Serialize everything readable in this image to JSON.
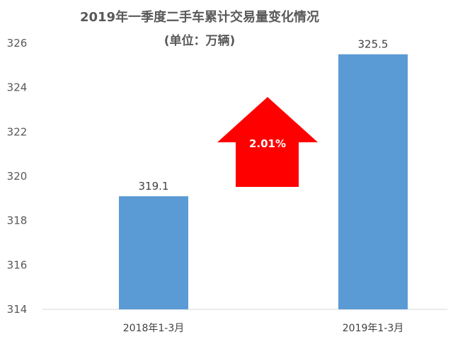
{
  "chart_data": {
    "type": "bar",
    "title": "2019年一季度二手车累计交易量变化情况",
    "subtitle": "(单位：万辆)",
    "categories": [
      "2018年1-3月",
      "2019年1-3月"
    ],
    "values": [
      319.1,
      325.5
    ],
    "data_labels": [
      "319.1",
      "325.5"
    ],
    "ylim": [
      314,
      326
    ],
    "yticks": [
      314,
      316,
      318,
      320,
      322,
      324,
      326
    ],
    "xlabel": "",
    "ylabel": "",
    "grid": false,
    "bar_color": "#5B9BD5",
    "annotation": {
      "label": "2.01%",
      "shape": "up-arrow",
      "color": "#FF0000"
    }
  }
}
